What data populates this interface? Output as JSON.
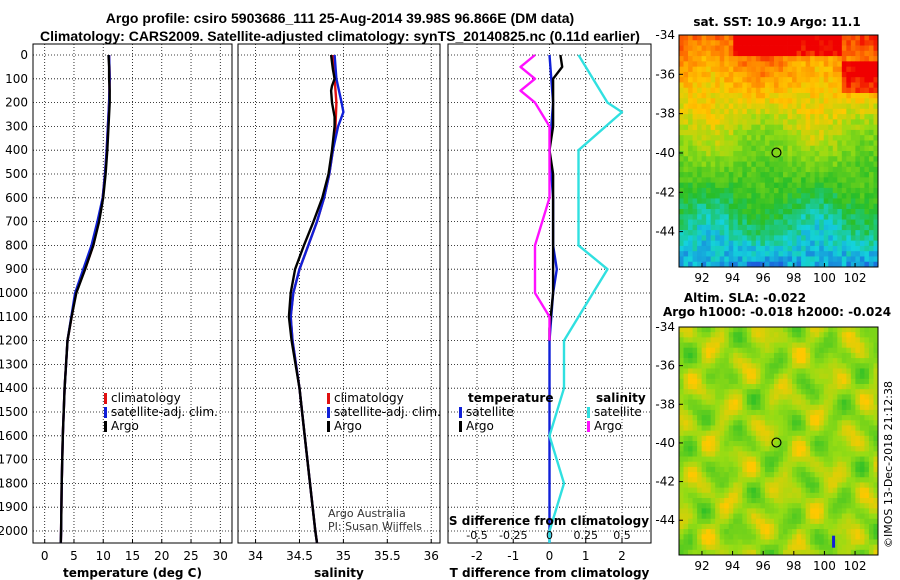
{
  "titles": {
    "line1": "Argo profile: csiro 5903686_111 25-Aug-2014 39.98S 96.866E (DM data)",
    "line2": "Climatology: CARS2009. Satellite-adjusted climatology: synTS_20140825.nc (0.11d earlier)"
  },
  "colors": {
    "climatology": "#e01010",
    "satellite": "#1020d8",
    "argo": "#000000",
    "sat_T": "#1020d8",
    "sat_S": "#30e0e0",
    "argo_S": "#ff10ff"
  },
  "chart_data": [
    {
      "type": "line",
      "id": "temperature",
      "xlabel": "temperature (deg C)",
      "ylabel": "",
      "xlim": [
        -2,
        32
      ],
      "ylim": [
        2100,
        0
      ],
      "xticks": [
        "0",
        "5",
        "10",
        "15",
        "20",
        "25",
        "30"
      ],
      "yticks": [
        "0",
        "100",
        "200",
        "300",
        "400",
        "500",
        "600",
        "700",
        "800",
        "900",
        "1000",
        "1100",
        "1200",
        "1300",
        "1400",
        "1500",
        "1600",
        "1700",
        "1800",
        "1900",
        "2000"
      ],
      "legend": [
        "climatology",
        "satellite-adj. clim.",
        "Argo"
      ],
      "series": [
        {
          "name": "climatology",
          "depth": [
            0,
            100,
            200,
            300,
            400,
            500,
            600,
            700,
            800,
            900,
            1000,
            1200,
            1400,
            1600,
            1800,
            2000,
            2050
          ],
          "values": [
            11.0,
            11.1,
            11.0,
            10.8,
            10.6,
            10.3,
            9.9,
            9.2,
            8.3,
            6.9,
            5.3,
            3.9,
            3.4,
            3.1,
            2.9,
            2.8,
            2.75
          ]
        },
        {
          "name": "satellite-adj. clim.",
          "depth": [
            0,
            100,
            200,
            300,
            400,
            500,
            600,
            700,
            800,
            900,
            1000,
            1200,
            1400,
            1600,
            1800,
            2000,
            2050
          ],
          "values": [
            11.0,
            11.1,
            11.0,
            10.8,
            10.6,
            10.3,
            9.9,
            9.0,
            8.0,
            6.6,
            5.2,
            3.9,
            3.4,
            3.1,
            2.9,
            2.8,
            2.75
          ]
        },
        {
          "name": "Argo",
          "depth": [
            0,
            50,
            100,
            150,
            200,
            250,
            300,
            400,
            500,
            600,
            700,
            800,
            900,
            1000,
            1100,
            1200,
            1400,
            1600,
            1800,
            2000,
            2050
          ],
          "values": [
            10.9,
            11.0,
            11.0,
            11.1,
            11.1,
            11.0,
            10.9,
            10.7,
            10.4,
            10.0,
            9.3,
            8.3,
            6.9,
            5.4,
            4.6,
            3.9,
            3.4,
            3.1,
            2.9,
            2.8,
            2.75
          ]
        }
      ]
    },
    {
      "type": "line",
      "id": "salinity",
      "xlabel": "salinity",
      "ylabel": "",
      "xlim": [
        33.8,
        36.1
      ],
      "ylim": [
        2100,
        0
      ],
      "xticks": [
        "34",
        "34.5",
        "35",
        "35.5",
        "36"
      ],
      "legend": [
        "climatology",
        "satellite-adj. clim.",
        "Argo"
      ],
      "annotation": [
        "Argo Australia",
        "PI: Susan Wijffels"
      ],
      "series": [
        {
          "name": "climatology",
          "depth": [
            0,
            100,
            200,
            300,
            400,
            500,
            600,
            700,
            800,
            900,
            1000,
            1100,
            1200,
            1400,
            1600,
            1800,
            2000,
            2050
          ],
          "values": [
            34.88,
            34.9,
            34.92,
            34.91,
            34.88,
            34.84,
            34.78,
            34.7,
            34.6,
            34.5,
            34.43,
            34.4,
            34.42,
            34.5,
            34.56,
            34.62,
            34.68,
            34.7
          ]
        },
        {
          "name": "satellite-adj. clim.",
          "depth": [
            0,
            100,
            150,
            200,
            240,
            300,
            400,
            500,
            600,
            700,
            800,
            900,
            1000,
            1100,
            1200,
            1400,
            1600,
            1800,
            2000,
            2050
          ],
          "values": [
            34.9,
            34.92,
            34.95,
            34.98,
            35.0,
            34.94,
            34.88,
            34.84,
            34.78,
            34.7,
            34.6,
            34.5,
            34.43,
            34.4,
            34.42,
            34.5,
            34.56,
            34.62,
            34.68,
            34.7
          ]
        },
        {
          "name": "Argo",
          "depth": [
            0,
            60,
            100,
            130,
            150,
            200,
            260,
            300,
            400,
            500,
            600,
            700,
            800,
            900,
            1000,
            1100,
            1200,
            1400,
            1600,
            1800,
            2000,
            2050
          ],
          "values": [
            34.86,
            34.88,
            34.9,
            34.87,
            34.86,
            34.87,
            34.9,
            34.9,
            34.87,
            34.83,
            34.76,
            34.66,
            34.55,
            34.45,
            34.4,
            34.38,
            34.41,
            34.5,
            34.56,
            34.62,
            34.68,
            34.7
          ]
        }
      ]
    },
    {
      "type": "line",
      "id": "difference",
      "xlabel": "T difference from climatology",
      "xlabel2": "S difference from climatology",
      "xlim": [
        -2.8,
        2.8
      ],
      "ylim": [
        2100,
        0
      ],
      "xticks": [
        "-2",
        "-1",
        "0",
        "1",
        "2"
      ],
      "xticks2": [
        "-0.5",
        "-0.25",
        "0",
        "0.25",
        "0.5"
      ],
      "legend_left_title": "temperature",
      "legend_right_title": "salinity",
      "legend_left": [
        "satellite",
        "Argo"
      ],
      "legend_right": [
        "satellite",
        "Argo"
      ],
      "series": [
        {
          "name": "temperature satellite",
          "depth": [
            0,
            200,
            400,
            600,
            800,
            900,
            1000,
            1200,
            1400,
            1600,
            1800,
            2000,
            2050
          ],
          "values": [
            0.0,
            0.1,
            0.0,
            0.1,
            0.1,
            0.2,
            0.1,
            0.0,
            0.0,
            0.0,
            0.0,
            0.0,
            0.0
          ]
        },
        {
          "name": "temperature Argo",
          "depth": [
            0,
            50,
            100,
            200,
            300,
            400,
            500,
            600,
            800,
            1000,
            1150,
            1200
          ],
          "values": [
            0.3,
            0.35,
            0.1,
            0.1,
            0.1,
            0.0,
            0.1,
            0.1,
            0.1,
            0.1,
            0.0,
            0.0
          ]
        },
        {
          "name": "salinity satellite",
          "depth": [
            0,
            200,
            240,
            400,
            800,
            900,
            1000,
            1200,
            1400,
            1600,
            1800,
            2000,
            2050
          ],
          "values": [
            0.2,
            0.4,
            0.5,
            0.2,
            0.2,
            0.4,
            0.3,
            0.1,
            0.1,
            0.0,
            0.1,
            0.0,
            0.0
          ]
        },
        {
          "name": "salinity Argo",
          "depth": [
            0,
            50,
            100,
            150,
            200,
            300,
            600,
            800,
            1000,
            1100,
            1200
          ],
          "values": [
            -0.1,
            -0.2,
            -0.1,
            -0.2,
            -0.1,
            0.0,
            0.0,
            -0.1,
            -0.1,
            0.0,
            0.0
          ]
        }
      ]
    },
    {
      "type": "heatmap",
      "id": "sst-map",
      "title": "sat. SST: 10.9 Argo: 11.1",
      "xlim": [
        90.5,
        103.5
      ],
      "ylim": [
        -45.8,
        -34
      ],
      "xticks": [
        "92",
        "94",
        "96",
        "98",
        "100",
        "102"
      ],
      "yticks": [
        "-34",
        "-36",
        "-38",
        "-40",
        "-42",
        "-44"
      ],
      "argo_position": [
        96.866,
        -39.98
      ]
    },
    {
      "type": "heatmap",
      "id": "sla-map",
      "title": "Altim. SLA: -0.022",
      "subtitle": "Argo h1000: -0.018 h2000: -0.024",
      "xlim": [
        90.5,
        103.5
      ],
      "ylim": [
        -45.8,
        -34
      ],
      "xticks": [
        "92",
        "94",
        "96",
        "98",
        "100",
        "102"
      ],
      "yticks": [
        "-34",
        "-36",
        "-38",
        "-40",
        "-42",
        "-44"
      ],
      "argo_position": [
        96.866,
        -39.98
      ]
    }
  ],
  "watermark": "©IMOS 13-Dec-2018 21:12:38"
}
